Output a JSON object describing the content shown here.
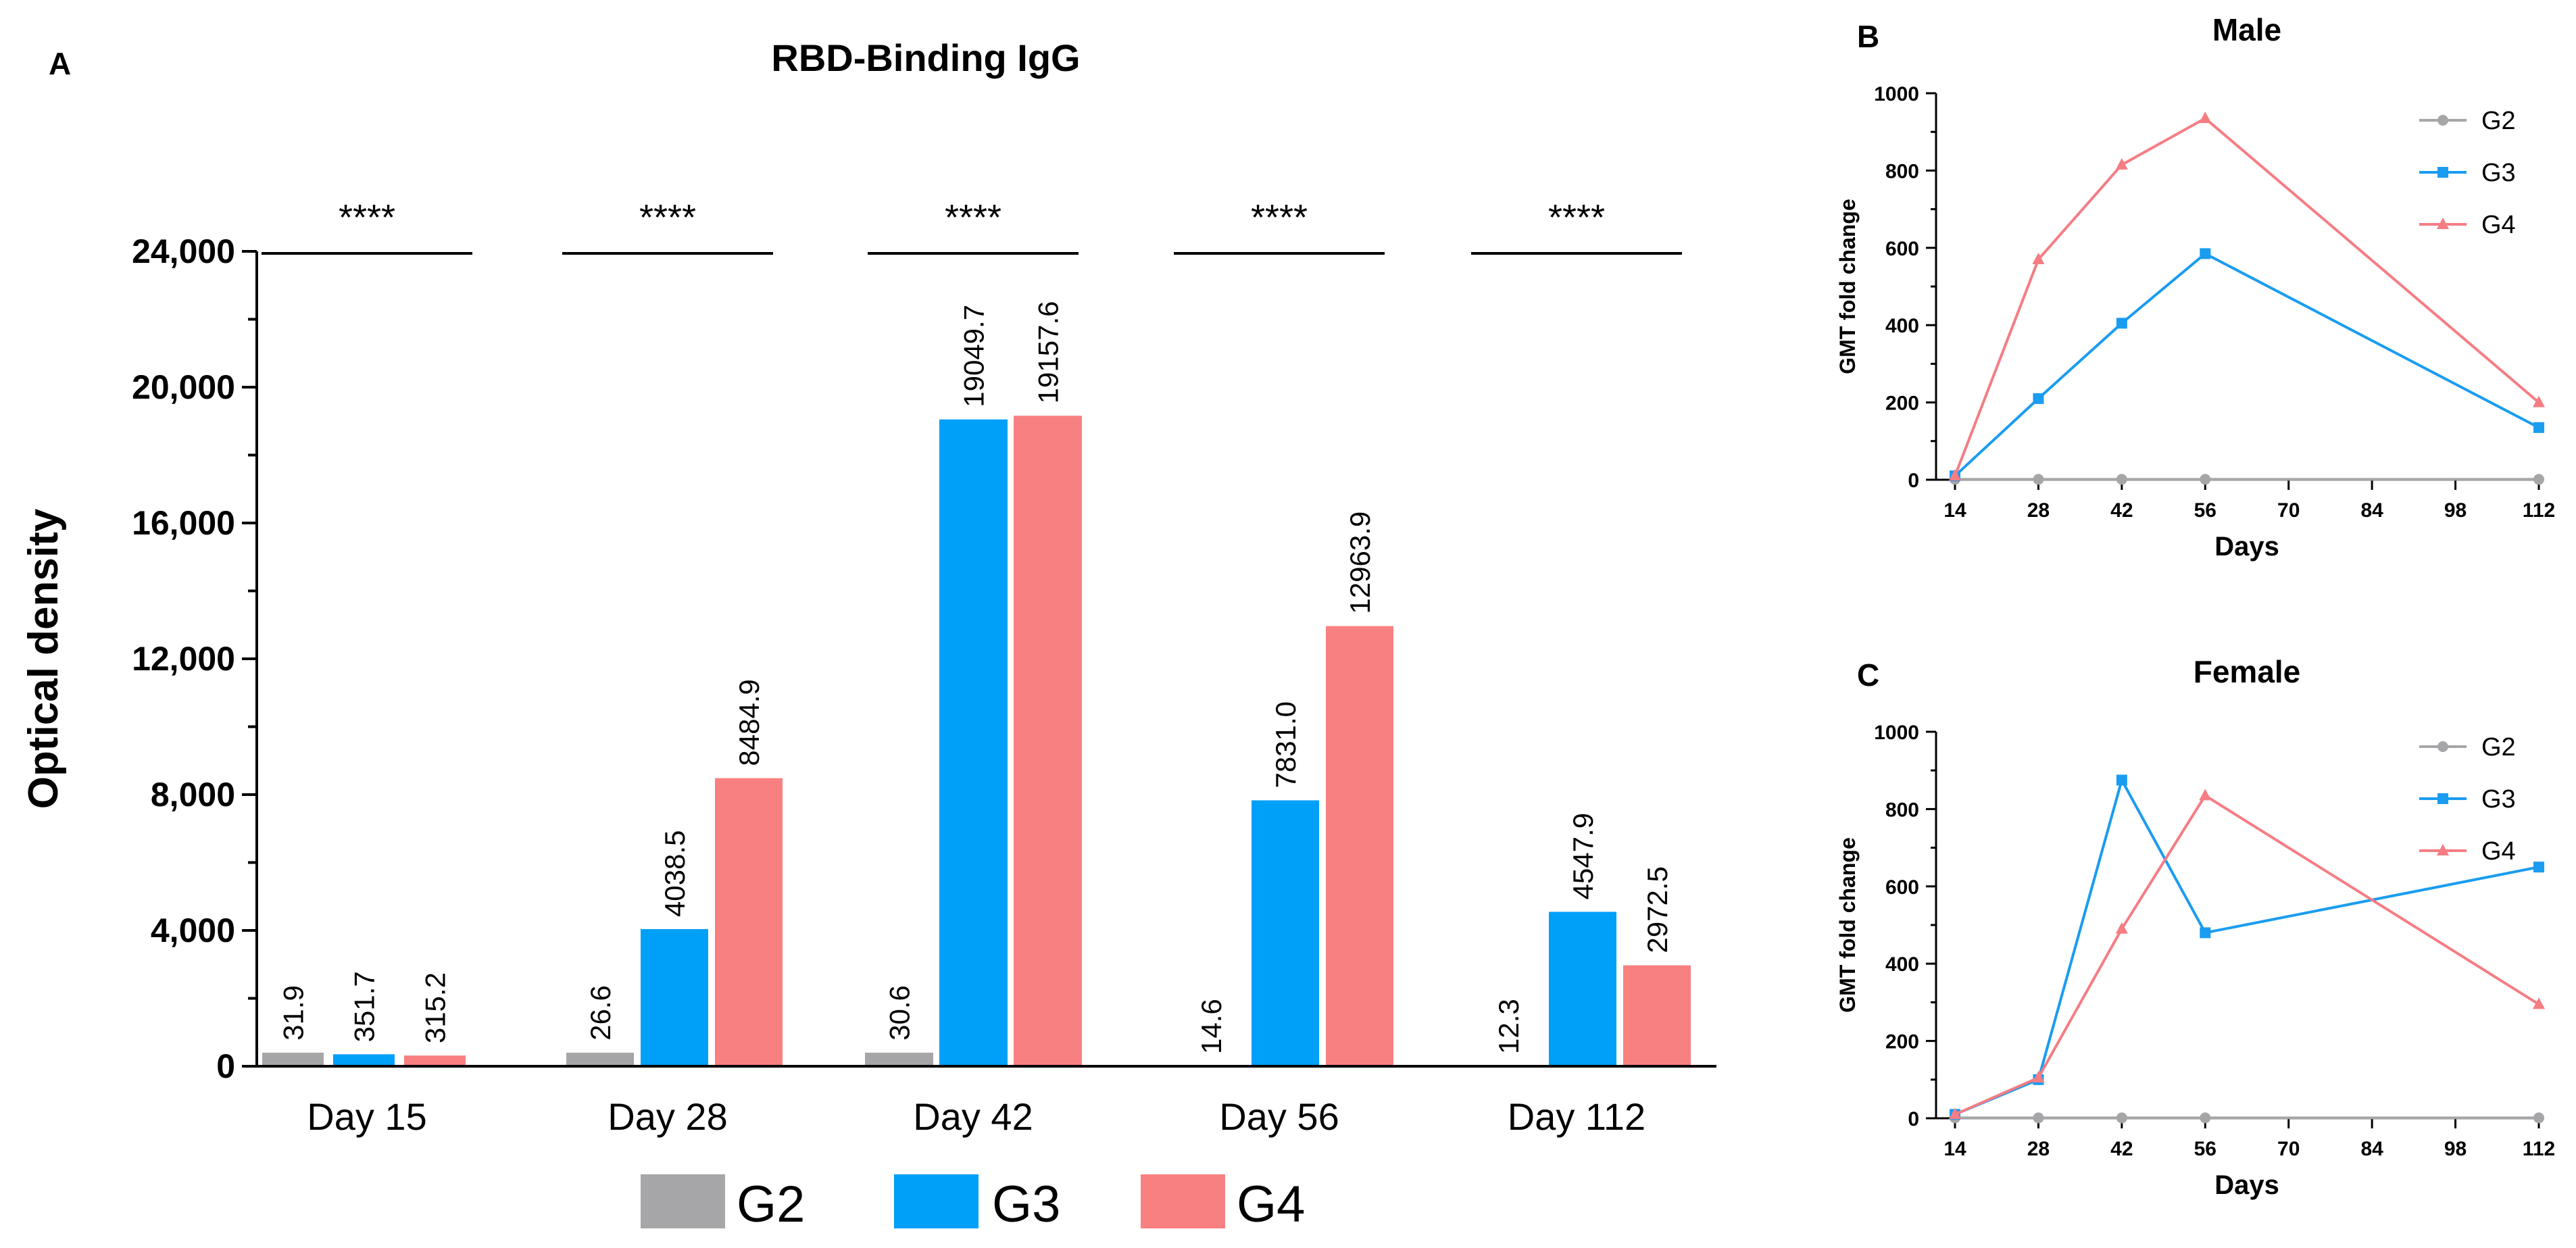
{
  "chart_data": [
    {
      "panel": "A",
      "type": "bar",
      "title": "RBD-Binding IgG",
      "ylabel": "Optical density",
      "xlabel": "",
      "ylim": [
        0,
        24000
      ],
      "yticks": [
        "0",
        "4,000",
        "8,000",
        "12,000",
        "16,000",
        "20,000",
        "24,000"
      ],
      "ytick_values": [
        0,
        4000,
        8000,
        12000,
        16000,
        20000,
        24000
      ],
      "categories": [
        "Day 15",
        "Day 28",
        "Day 42",
        "Day 56",
        "Day 112"
      ],
      "series": [
        {
          "name": "G2",
          "color": "#a6a6a8",
          "values": [
            31.9,
            26.6,
            30.6,
            14.6,
            12.3
          ],
          "labels": [
            "31.9",
            "26.6",
            "30.6",
            "14.6",
            "12.3"
          ]
        },
        {
          "name": "G3",
          "color": "#009ff8",
          "values": [
            351.7,
            4038.5,
            19049.7,
            7831.0,
            4547.9
          ],
          "labels": [
            "351.7",
            "4038.5",
            "19049.7",
            "7831.0",
            "4547.9"
          ]
        },
        {
          "name": "G4",
          "color": "#f88080",
          "values": [
            315.2,
            8484.9,
            19157.6,
            12963.9,
            2972.5
          ],
          "labels": [
            "315.2",
            "8484.9",
            "19157.6",
            "12963.9",
            "2972.5"
          ]
        }
      ],
      "significance": [
        "****",
        "****",
        "****",
        "****",
        "****"
      ],
      "legend_position": "bottom"
    },
    {
      "panel": "B",
      "type": "line",
      "title": "Male",
      "xlabel": "Days",
      "ylabel": "GMT fold change",
      "x": [
        14,
        28,
        42,
        56,
        112
      ],
      "xticks": [
        "14",
        "28",
        "42",
        "56",
        "70",
        "84",
        "98",
        "112"
      ],
      "xtick_values": [
        14,
        28,
        42,
        56,
        70,
        84,
        98,
        112
      ],
      "yticks": [
        "0",
        "200",
        "400",
        "600",
        "800",
        "1000"
      ],
      "ytick_values": [
        0,
        200,
        400,
        600,
        800,
        1000
      ],
      "xlim": [
        14,
        112
      ],
      "ylim": [
        0,
        1000
      ],
      "series": [
        {
          "name": "G2",
          "color": "#a6a6a8",
          "marker": "circle",
          "values": [
            1,
            1,
            1,
            1,
            1
          ]
        },
        {
          "name": "G3",
          "color": "#1a9cf0",
          "marker": "square",
          "values": [
            10,
            210,
            405,
            585,
            135
          ]
        },
        {
          "name": "G4",
          "color": "#f47d84",
          "marker": "triangle",
          "values": [
            10,
            570,
            815,
            935,
            200
          ]
        }
      ],
      "legend_position": "top-right"
    },
    {
      "panel": "C",
      "type": "line",
      "title": "Female",
      "xlabel": "Days",
      "ylabel": "GMT fold change",
      "x": [
        14,
        28,
        42,
        56,
        112
      ],
      "xticks": [
        "14",
        "28",
        "42",
        "56",
        "70",
        "84",
        "98",
        "112"
      ],
      "xtick_values": [
        14,
        28,
        42,
        56,
        70,
        84,
        98,
        112
      ],
      "yticks": [
        "0",
        "200",
        "400",
        "600",
        "800",
        "1000"
      ],
      "ytick_values": [
        0,
        200,
        400,
        600,
        800,
        1000
      ],
      "xlim": [
        14,
        112
      ],
      "ylim": [
        0,
        1000
      ],
      "series": [
        {
          "name": "G2",
          "color": "#a6a6a8",
          "marker": "circle",
          "values": [
            1,
            1,
            1,
            1,
            1
          ]
        },
        {
          "name": "G3",
          "color": "#1a9cf0",
          "marker": "square",
          "values": [
            10,
            100,
            875,
            480,
            650
          ]
        },
        {
          "name": "G4",
          "color": "#f47d84",
          "marker": "triangle",
          "values": [
            10,
            105,
            490,
            835,
            295
          ]
        }
      ],
      "legend_position": "top-right"
    }
  ]
}
